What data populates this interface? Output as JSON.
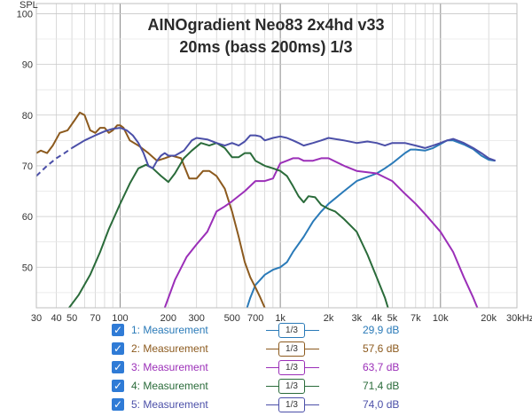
{
  "chart_data": {
    "type": "line",
    "title": "AINOgradient Neo83 2x4hd v33",
    "subtitle": "20ms (bass 200ms) 1/3",
    "ylabel": "SPL",
    "xunit": "kHz",
    "xscale": "log",
    "xlim": [
      30,
      30000
    ],
    "ylim": [
      42,
      102
    ],
    "grid": true,
    "xticks": [
      {
        "v": 30,
        "label": "30"
      },
      {
        "v": 40,
        "label": "40"
      },
      {
        "v": 50,
        "label": "50"
      },
      {
        "v": 70,
        "label": "70"
      },
      {
        "v": 100,
        "label": "100"
      },
      {
        "v": 200,
        "label": "200"
      },
      {
        "v": 300,
        "label": "300"
      },
      {
        "v": 500,
        "label": "500"
      },
      {
        "v": 700,
        "label": "700"
      },
      {
        "v": 1000,
        "label": "1k"
      },
      {
        "v": 2000,
        "label": "2k"
      },
      {
        "v": 3000,
        "label": "3k"
      },
      {
        "v": 4000,
        "label": "4k"
      },
      {
        "v": 5000,
        "label": "5k"
      },
      {
        "v": 7000,
        "label": "7k"
      },
      {
        "v": 10000,
        "label": "10k"
      },
      {
        "v": 20000,
        "label": "20k"
      },
      {
        "v": 30000,
        "label": "30kHz"
      }
    ],
    "yticks": [
      {
        "v": 50,
        "label": "50"
      },
      {
        "v": 60,
        "label": "60"
      },
      {
        "v": 70,
        "label": "70"
      },
      {
        "v": 80,
        "label": "80"
      },
      {
        "v": 90,
        "label": "90"
      },
      {
        "v": 100,
        "label": "100"
      }
    ],
    "series": [
      {
        "name": "1: Measurement",
        "value_label": "29,9 dB",
        "color": "#2a7ab8",
        "points": [
          [
            620,
            42
          ],
          [
            650,
            44
          ],
          [
            700,
            46.5
          ],
          [
            800,
            48.5
          ],
          [
            900,
            49.5
          ],
          [
            1000,
            50
          ],
          [
            1100,
            51
          ],
          [
            1200,
            53
          ],
          [
            1400,
            56
          ],
          [
            1600,
            59
          ],
          [
            1800,
            61
          ],
          [
            2000,
            62.5
          ],
          [
            2500,
            65
          ],
          [
            3000,
            67
          ],
          [
            3500,
            67.8
          ],
          [
            4000,
            68.5
          ],
          [
            4500,
            69.5
          ],
          [
            5000,
            70.5
          ],
          [
            6000,
            72.5
          ],
          [
            6500,
            73.2
          ],
          [
            7000,
            73.2
          ],
          [
            8000,
            73
          ],
          [
            9000,
            73.5
          ],
          [
            10000,
            74.3
          ],
          [
            11000,
            75
          ],
          [
            12000,
            75
          ],
          [
            14000,
            74.2
          ],
          [
            16000,
            73.3
          ],
          [
            18000,
            72
          ],
          [
            20000,
            71.2
          ],
          [
            22000,
            71
          ]
        ]
      },
      {
        "name": "2: Measurement",
        "value_label": "57,6 dB",
        "color": "#8c5a1e",
        "points": [
          [
            30,
            72.5
          ],
          [
            32,
            73
          ],
          [
            35,
            72.5
          ],
          [
            38,
            74
          ],
          [
            42,
            76.5
          ],
          [
            47,
            77
          ],
          [
            52,
            79
          ],
          [
            56,
            80.5
          ],
          [
            60,
            80
          ],
          [
            65,
            77
          ],
          [
            70,
            76.5
          ],
          [
            75,
            77.5
          ],
          [
            80,
            77.5
          ],
          [
            85,
            76.5
          ],
          [
            90,
            77
          ],
          [
            96,
            78
          ],
          [
            100,
            78
          ],
          [
            105,
            77.5
          ],
          [
            115,
            75
          ],
          [
            130,
            74
          ],
          [
            150,
            72.5
          ],
          [
            170,
            71
          ],
          [
            190,
            71.5
          ],
          [
            210,
            72
          ],
          [
            240,
            71.5
          ],
          [
            270,
            67.5
          ],
          [
            300,
            67.5
          ],
          [
            330,
            69
          ],
          [
            360,
            69
          ],
          [
            400,
            68
          ],
          [
            450,
            65.5
          ],
          [
            500,
            61
          ],
          [
            550,
            56
          ],
          [
            600,
            51
          ],
          [
            650,
            48
          ],
          [
            700,
            46
          ],
          [
            750,
            44
          ],
          [
            800,
            42
          ]
        ]
      },
      {
        "name": "3: Measurement",
        "value_label": "63,7 dB",
        "color": "#9b2fb8",
        "points": [
          [
            190,
            42
          ],
          [
            220,
            47.5
          ],
          [
            260,
            52
          ],
          [
            300,
            54.5
          ],
          [
            350,
            57
          ],
          [
            400,
            61
          ],
          [
            450,
            62
          ],
          [
            500,
            63
          ],
          [
            600,
            65
          ],
          [
            700,
            67
          ],
          [
            800,
            67
          ],
          [
            900,
            67.5
          ],
          [
            1000,
            70.5
          ],
          [
            1100,
            71
          ],
          [
            1200,
            71.5
          ],
          [
            1300,
            71.5
          ],
          [
            1400,
            71
          ],
          [
            1600,
            71
          ],
          [
            1800,
            71.5
          ],
          [
            2000,
            71.5
          ],
          [
            2500,
            70
          ],
          [
            3000,
            69
          ],
          [
            4000,
            68.5
          ],
          [
            5000,
            67
          ],
          [
            6000,
            64.5
          ],
          [
            7000,
            62.5
          ],
          [
            8000,
            60.5
          ],
          [
            10000,
            57
          ],
          [
            12000,
            53
          ],
          [
            14000,
            48
          ],
          [
            16000,
            44
          ],
          [
            17000,
            42
          ]
        ]
      },
      {
        "name": "4: Measurement",
        "value_label": "71,4 dB",
        "color": "#2a6b3a",
        "points": [
          [
            48,
            42
          ],
          [
            55,
            44.5
          ],
          [
            65,
            48.5
          ],
          [
            75,
            53
          ],
          [
            85,
            57.5
          ],
          [
            100,
            62.5
          ],
          [
            115,
            66.5
          ],
          [
            130,
            69.5
          ],
          [
            145,
            70.2
          ],
          [
            160,
            69.5
          ],
          [
            180,
            68
          ],
          [
            200,
            66.8
          ],
          [
            220,
            68.5
          ],
          [
            250,
            71.5
          ],
          [
            280,
            73
          ],
          [
            320,
            74.5
          ],
          [
            360,
            74
          ],
          [
            400,
            74.5
          ],
          [
            450,
            73.5
          ],
          [
            500,
            71.7
          ],
          [
            550,
            71.7
          ],
          [
            600,
            72.5
          ],
          [
            650,
            72.5
          ],
          [
            700,
            71
          ],
          [
            800,
            70
          ],
          [
            900,
            69.5
          ],
          [
            1000,
            69
          ],
          [
            1100,
            68
          ],
          [
            1200,
            66
          ],
          [
            1300,
            64
          ],
          [
            1400,
            62.8
          ],
          [
            1500,
            64
          ],
          [
            1650,
            63.8
          ],
          [
            1800,
            62.3
          ],
          [
            2000,
            61.5
          ],
          [
            2200,
            61
          ],
          [
            2500,
            59.5
          ],
          [
            3000,
            57
          ],
          [
            3500,
            52.5
          ],
          [
            4000,
            48
          ],
          [
            4500,
            44
          ],
          [
            4700,
            42
          ]
        ]
      },
      {
        "name": "5: Measurement",
        "value_label": "74,0 dB",
        "color": "#4b4fa8",
        "dashed_below_hz": 50,
        "points": [
          [
            30,
            68
          ],
          [
            35,
            70
          ],
          [
            40,
            71.5
          ],
          [
            45,
            72.5
          ],
          [
            50,
            73.5
          ],
          [
            60,
            75
          ],
          [
            70,
            76
          ],
          [
            80,
            76.8
          ],
          [
            90,
            77.3
          ],
          [
            100,
            77.5
          ],
          [
            110,
            77
          ],
          [
            120,
            76
          ],
          [
            130,
            74.5
          ],
          [
            140,
            72.5
          ],
          [
            150,
            70
          ],
          [
            160,
            69.5
          ],
          [
            170,
            71
          ],
          [
            180,
            72
          ],
          [
            190,
            72.5
          ],
          [
            200,
            72
          ],
          [
            220,
            72
          ],
          [
            250,
            73
          ],
          [
            280,
            75
          ],
          [
            300,
            75.5
          ],
          [
            350,
            75.2
          ],
          [
            400,
            74.5
          ],
          [
            450,
            74
          ],
          [
            500,
            74.5
          ],
          [
            550,
            74
          ],
          [
            600,
            74.8
          ],
          [
            650,
            76
          ],
          [
            700,
            76
          ],
          [
            750,
            75.8
          ],
          [
            800,
            75
          ],
          [
            900,
            75.5
          ],
          [
            1000,
            75.8
          ],
          [
            1100,
            75.5
          ],
          [
            1200,
            75
          ],
          [
            1300,
            74.5
          ],
          [
            1400,
            74
          ],
          [
            1600,
            74.5
          ],
          [
            1800,
            75
          ],
          [
            2000,
            75.5
          ],
          [
            2500,
            75
          ],
          [
            3000,
            74.5
          ],
          [
            3500,
            74.8
          ],
          [
            4000,
            74.5
          ],
          [
            4500,
            74
          ],
          [
            5000,
            74.5
          ],
          [
            6000,
            74.5
          ],
          [
            7000,
            74
          ],
          [
            8000,
            73.5
          ],
          [
            9000,
            74
          ],
          [
            10000,
            74.5
          ],
          [
            11000,
            75
          ],
          [
            12000,
            75.3
          ],
          [
            14000,
            74.5
          ],
          [
            16000,
            73.5
          ],
          [
            18000,
            72.5
          ],
          [
            20000,
            71.5
          ],
          [
            22000,
            71
          ]
        ]
      }
    ]
  },
  "smoothing_label": "1/3"
}
